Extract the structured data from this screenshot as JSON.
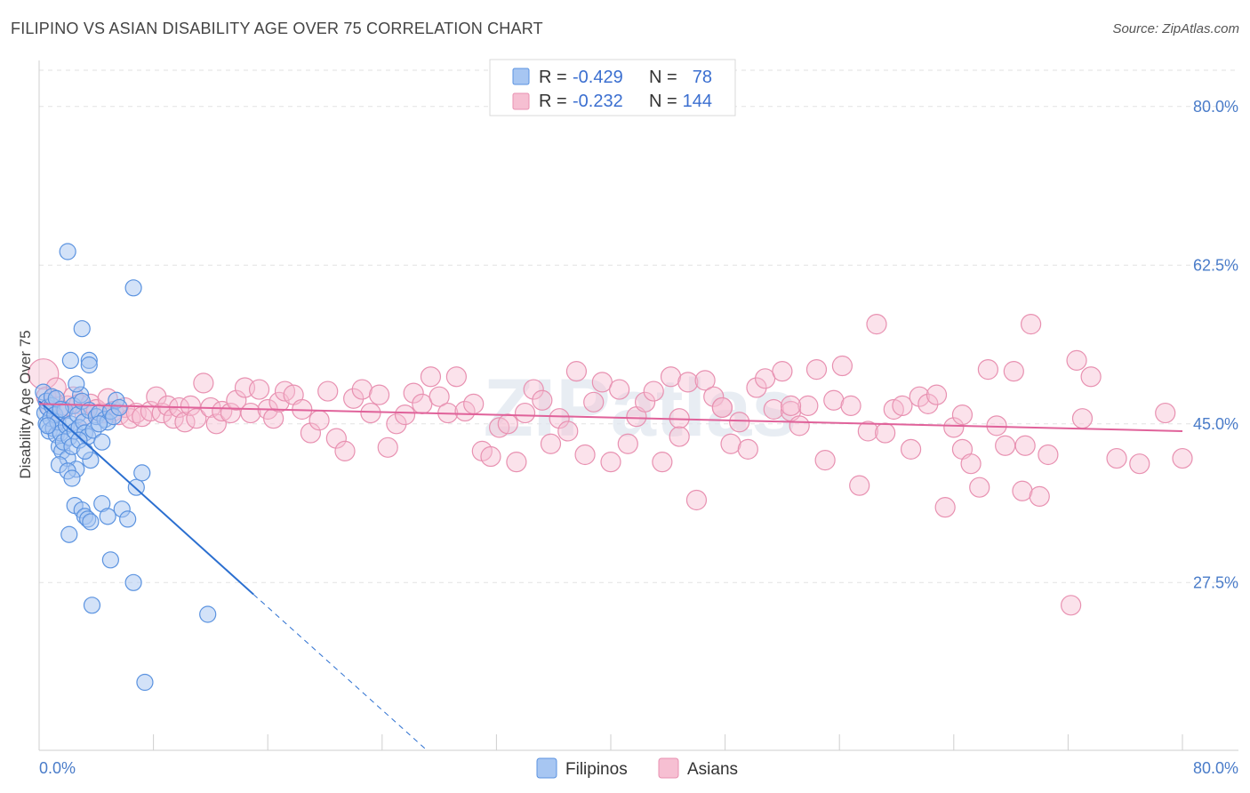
{
  "title": "FILIPINO VS ASIAN DISABILITY AGE OVER 75 CORRELATION CHART",
  "source": "Source: ZipAtlas.com",
  "watermark": "ZIPatlas",
  "colors": {
    "blue_fill": "#a7c6f2",
    "blue_stroke": "#5b93e0",
    "blue_line": "#2b6fd0",
    "pink_fill": "#f6bfd2",
    "pink_stroke": "#e891b1",
    "pink_line": "#e0629a",
    "tick_text": "#4a7cc9",
    "grid": "#e2e2e2"
  },
  "legend": {
    "rows": [
      {
        "r_label": "R =",
        "r_value": "-0.429",
        "n_label": "N =",
        "n_value": "78"
      },
      {
        "r_label": "R =",
        "r_value": "-0.232",
        "n_label": "N =",
        "n_value": "144"
      }
    ]
  },
  "chart_data": {
    "type": "scatter",
    "title": "FILIPINO VS ASIAN DISABILITY AGE OVER 75 CORRELATION CHART",
    "xlabel": "",
    "ylabel": "Disability Age Over 75",
    "xlim": [
      0,
      80
    ],
    "ylim": [
      9,
      84
    ],
    "x_tick_labels": [
      "0.0%",
      "80.0%"
    ],
    "y_ticks": [
      27.5,
      45.0,
      62.5,
      80.0
    ],
    "y_tick_labels": [
      "27.5%",
      "45.0%",
      "62.5%",
      "80.0%"
    ],
    "grid": true,
    "legend_position": "bottom",
    "series": [
      {
        "name": "Filipinos",
        "r": -0.429,
        "n": 78,
        "trend": {
          "x0": 0.0,
          "y0": 47.5,
          "x1": 15.0,
          "y1": 26.2,
          "dash_to_x": 27.0,
          "dash_to_y": 9.2
        },
        "points": [
          [
            0.3,
            48.5
          ],
          [
            0.4,
            46.2
          ],
          [
            0.5,
            47.5
          ],
          [
            0.5,
            45.0
          ],
          [
            0.6,
            46.8
          ],
          [
            0.7,
            44.2
          ],
          [
            0.8,
            45.6
          ],
          [
            0.9,
            47.0
          ],
          [
            1.0,
            44.5
          ],
          [
            1.1,
            46.0
          ],
          [
            1.2,
            43.8
          ],
          [
            1.3,
            45.2
          ],
          [
            1.4,
            42.5
          ],
          [
            1.5,
            44.0
          ],
          [
            1.6,
            42.0
          ],
          [
            1.7,
            43.0
          ],
          [
            1.8,
            46.5
          ],
          [
            1.9,
            44.8
          ],
          [
            2.0,
            41.2
          ],
          [
            2.1,
            43.5
          ],
          [
            2.2,
            45.0
          ],
          [
            2.3,
            42.5
          ],
          [
            2.4,
            47.0
          ],
          [
            2.5,
            44.2
          ],
          [
            2.6,
            40.0
          ],
          [
            2.7,
            46.0
          ],
          [
            2.8,
            44.6
          ],
          [
            2.9,
            48.2
          ],
          [
            3.0,
            47.5
          ],
          [
            3.1,
            45.2
          ],
          [
            3.2,
            44.0
          ],
          [
            3.4,
            43.6
          ],
          [
            3.5,
            46.5
          ],
          [
            3.6,
            41.0
          ],
          [
            3.8,
            44.3
          ],
          [
            4.0,
            45.8
          ],
          [
            4.2,
            46.2
          ],
          [
            4.4,
            43.0
          ],
          [
            4.6,
            45.5
          ],
          [
            4.8,
            45.2
          ],
          [
            5.0,
            46.4
          ],
          [
            5.2,
            45.8
          ],
          [
            5.4,
            47.6
          ],
          [
            5.6,
            46.8
          ],
          [
            0.9,
            48.0
          ],
          [
            1.4,
            40.5
          ],
          [
            2.0,
            39.8
          ],
          [
            2.3,
            39.0
          ],
          [
            2.5,
            36.0
          ],
          [
            3.0,
            35.5
          ],
          [
            3.2,
            34.8
          ],
          [
            3.4,
            34.5
          ],
          [
            3.6,
            34.2
          ],
          [
            4.4,
            36.2
          ],
          [
            4.8,
            34.8
          ],
          [
            5.8,
            35.6
          ],
          [
            6.2,
            34.5
          ],
          [
            6.8,
            38.0
          ],
          [
            7.2,
            39.6
          ],
          [
            2.1,
            32.8
          ],
          [
            5.0,
            30.0
          ],
          [
            6.6,
            27.5
          ],
          [
            3.7,
            25.0
          ],
          [
            11.8,
            24.0
          ],
          [
            2.0,
            64.0
          ],
          [
            6.6,
            60.0
          ],
          [
            3.0,
            55.5
          ],
          [
            2.2,
            52.0
          ],
          [
            3.5,
            52.0
          ],
          [
            3.5,
            51.5
          ],
          [
            2.6,
            49.4
          ],
          [
            7.4,
            16.5
          ],
          [
            1.2,
            47.8
          ],
          [
            1.5,
            46.6
          ],
          [
            0.6,
            44.8
          ],
          [
            2.8,
            43.2
          ],
          [
            3.2,
            42.0
          ],
          [
            4.2,
            45.0
          ]
        ]
      },
      {
        "name": "Asians",
        "r": -0.232,
        "n": 144,
        "trend": {
          "x0": 0.0,
          "y0": 47.2,
          "x1": 80.0,
          "y1": 44.2
        },
        "points": [
          [
            0.3,
            50.5
          ],
          [
            0.5,
            48.0
          ],
          [
            0.8,
            46.8
          ],
          [
            1.0,
            47.5
          ],
          [
            1.2,
            49.0
          ],
          [
            1.6,
            46.5
          ],
          [
            2.0,
            47.0
          ],
          [
            2.4,
            48.0
          ],
          [
            2.8,
            47.2
          ],
          [
            3.2,
            46.0
          ],
          [
            3.6,
            47.2
          ],
          [
            4.0,
            46.6
          ],
          [
            4.4,
            46.2
          ],
          [
            4.8,
            47.8
          ],
          [
            5.2,
            46.4
          ],
          [
            5.6,
            46.0
          ],
          [
            6.0,
            46.8
          ],
          [
            6.4,
            45.6
          ],
          [
            6.8,
            46.2
          ],
          [
            7.2,
            45.8
          ],
          [
            7.8,
            46.4
          ],
          [
            8.2,
            48.0
          ],
          [
            8.6,
            46.2
          ],
          [
            9.0,
            47.0
          ],
          [
            9.4,
            45.6
          ],
          [
            9.8,
            46.8
          ],
          [
            10.2,
            45.2
          ],
          [
            10.6,
            47.0
          ],
          [
            11.0,
            45.6
          ],
          [
            11.5,
            49.5
          ],
          [
            12.0,
            46.8
          ],
          [
            12.4,
            45.0
          ],
          [
            12.8,
            46.4
          ],
          [
            13.4,
            46.2
          ],
          [
            13.8,
            47.6
          ],
          [
            14.4,
            49.0
          ],
          [
            14.8,
            46.2
          ],
          [
            15.4,
            48.8
          ],
          [
            16.0,
            46.6
          ],
          [
            16.4,
            45.6
          ],
          [
            16.8,
            47.4
          ],
          [
            17.2,
            48.6
          ],
          [
            17.8,
            48.2
          ],
          [
            18.4,
            46.6
          ],
          [
            19.0,
            44.0
          ],
          [
            19.6,
            45.4
          ],
          [
            20.2,
            48.6
          ],
          [
            20.8,
            43.4
          ],
          [
            21.4,
            42.0
          ],
          [
            22.0,
            47.8
          ],
          [
            22.6,
            48.8
          ],
          [
            23.2,
            46.2
          ],
          [
            23.8,
            48.2
          ],
          [
            24.4,
            42.4
          ],
          [
            25.0,
            45.0
          ],
          [
            25.6,
            46.0
          ],
          [
            26.2,
            48.4
          ],
          [
            26.8,
            47.2
          ],
          [
            27.4,
            50.2
          ],
          [
            28.0,
            48.0
          ],
          [
            28.6,
            46.2
          ],
          [
            29.2,
            50.2
          ],
          [
            29.8,
            46.4
          ],
          [
            30.4,
            47.2
          ],
          [
            31.0,
            42.0
          ],
          [
            31.6,
            41.4
          ],
          [
            32.2,
            44.6
          ],
          [
            32.8,
            45.0
          ],
          [
            33.4,
            40.8
          ],
          [
            34.0,
            46.2
          ],
          [
            34.6,
            48.8
          ],
          [
            35.2,
            47.6
          ],
          [
            35.8,
            42.8
          ],
          [
            36.4,
            45.6
          ],
          [
            37.0,
            44.2
          ],
          [
            37.6,
            50.8
          ],
          [
            38.2,
            41.6
          ],
          [
            38.8,
            47.4
          ],
          [
            39.4,
            49.6
          ],
          [
            40.0,
            40.8
          ],
          [
            40.6,
            48.8
          ],
          [
            41.2,
            42.8
          ],
          [
            41.8,
            45.8
          ],
          [
            42.4,
            47.4
          ],
          [
            43.0,
            48.6
          ],
          [
            43.6,
            40.8
          ],
          [
            44.2,
            50.2
          ],
          [
            44.8,
            45.6
          ],
          [
            45.4,
            49.6
          ],
          [
            46.0,
            36.6
          ],
          [
            46.6,
            49.8
          ],
          [
            47.2,
            48.0
          ],
          [
            47.8,
            46.8
          ],
          [
            48.4,
            42.8
          ],
          [
            49.0,
            45.2
          ],
          [
            49.6,
            42.2
          ],
          [
            50.2,
            49.0
          ],
          [
            50.8,
            50.0
          ],
          [
            51.4,
            46.6
          ],
          [
            52.0,
            50.8
          ],
          [
            52.6,
            46.4
          ],
          [
            53.2,
            44.8
          ],
          [
            53.8,
            47.0
          ],
          [
            54.4,
            51.0
          ],
          [
            55.0,
            41.0
          ],
          [
            55.6,
            47.6
          ],
          [
            56.2,
            51.4
          ],
          [
            56.8,
            47.0
          ],
          [
            57.4,
            38.2
          ],
          [
            58.0,
            44.2
          ],
          [
            58.6,
            56.0
          ],
          [
            59.2,
            44.0
          ],
          [
            59.8,
            46.6
          ],
          [
            60.4,
            47.0
          ],
          [
            61.0,
            42.2
          ],
          [
            61.6,
            48.0
          ],
          [
            62.2,
            47.2
          ],
          [
            62.8,
            48.2
          ],
          [
            63.4,
            35.8
          ],
          [
            64.0,
            44.6
          ],
          [
            64.6,
            42.2
          ],
          [
            65.2,
            40.6
          ],
          [
            65.8,
            38.0
          ],
          [
            66.4,
            51.0
          ],
          [
            67.0,
            44.8
          ],
          [
            67.6,
            42.6
          ],
          [
            68.2,
            50.8
          ],
          [
            68.8,
            37.6
          ],
          [
            69.4,
            56.0
          ],
          [
            70.0,
            37.0
          ],
          [
            70.6,
            41.6
          ],
          [
            72.2,
            25.0
          ],
          [
            72.6,
            52.0
          ],
          [
            73.0,
            45.6
          ],
          [
            73.6,
            50.2
          ],
          [
            75.4,
            41.2
          ],
          [
            77.0,
            40.6
          ],
          [
            78.8,
            46.2
          ],
          [
            80.0,
            41.2
          ],
          [
            47.8,
            46.8
          ],
          [
            64.6,
            46.0
          ],
          [
            69.0,
            42.6
          ],
          [
            52.6,
            47.0
          ],
          [
            44.8,
            43.6
          ]
        ]
      }
    ]
  },
  "bottom_legend": {
    "filipinos": "Filipinos",
    "asians": "Asians"
  }
}
